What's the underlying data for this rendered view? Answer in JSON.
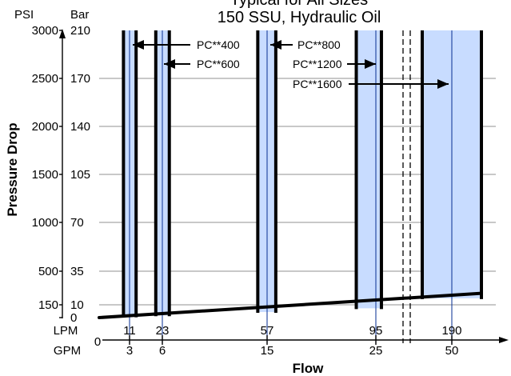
{
  "chart_data": {
    "type": "area",
    "title_lines": [
      "Typical for All Sizes",
      "150 SSU, Hydraulic Oil"
    ],
    "ylabel": "Pressure Drop",
    "xlabel": "Flow",
    "y_axis": {
      "psi_unit": "PSI",
      "bar_unit": "Bar",
      "ylim_psi": [
        0,
        3000
      ],
      "ticks": [
        {
          "psi": 0,
          "psi_label": "",
          "bar_label": "0"
        },
        {
          "psi": 150,
          "psi_label": "150",
          "bar_label": "10"
        },
        {
          "psi": 500,
          "psi_label": "500",
          "bar_label": "35"
        },
        {
          "psi": 1000,
          "psi_label": "1000",
          "bar_label": "70"
        },
        {
          "psi": 1500,
          "psi_label": "1500",
          "bar_label": "105"
        },
        {
          "psi": 2000,
          "psi_label": "2000",
          "bar_label": "140"
        },
        {
          "psi": 2500,
          "psi_label": "2500",
          "bar_label": "170"
        },
        {
          "psi": 3000,
          "psi_label": "3000",
          "bar_label": "210"
        }
      ],
      "gridlines_psi": [
        500,
        1000,
        1500,
        2000,
        2500
      ]
    },
    "x_axis": {
      "lpm_unit": "LPM",
      "gpm_unit": "GPM",
      "origin_gpm": "0",
      "ticks": [
        {
          "gpm": 3,
          "lpm_label": "11",
          "gpm_label": "3"
        },
        {
          "gpm": 6,
          "lpm_label": "23",
          "gpm_label": "6"
        },
        {
          "gpm": 15,
          "lpm_label": "57",
          "gpm_label": "15"
        },
        {
          "gpm": 25,
          "lpm_label": "95",
          "gpm_label": "25"
        },
        {
          "gpm": 50,
          "lpm_label": "190",
          "gpm_label": "50"
        }
      ]
    },
    "series": [
      {
        "name": "PC**400",
        "gpm_min": 2.4,
        "gpm_max": 3.6,
        "flow_gpm": 3,
        "psi_min": 30,
        "psi_max": 3000
      },
      {
        "name": "PC**600",
        "gpm_min": 5.4,
        "gpm_max": 6.6,
        "flow_gpm": 6,
        "psi_min": 50,
        "psi_max": 3000
      },
      {
        "name": "PC**800",
        "gpm_min": 14.2,
        "gpm_max": 15.8,
        "flow_gpm": 15,
        "psi_min": 115,
        "psi_max": 3000
      },
      {
        "name": "PC**1200",
        "gpm_min": 23.2,
        "gpm_max": 26.8,
        "flow_gpm": 25,
        "psi_min": 170,
        "psi_max": 3000
      },
      {
        "name": "PC**1600",
        "gpm_min": 40,
        "gpm_max": 62,
        "flow_gpm": 50,
        "psi_min": 210,
        "psi_max": 3000
      }
    ],
    "pressure_drop_curve": [
      {
        "gpm": 0,
        "psi": 0
      },
      {
        "gpm": 62,
        "psi": 270
      }
    ],
    "legend": "labels",
    "colors": {
      "band_fill": "#c8dcff",
      "center_line": "#1b3f9a",
      "outline": "#000000",
      "grid": "#a6a6a6"
    }
  }
}
